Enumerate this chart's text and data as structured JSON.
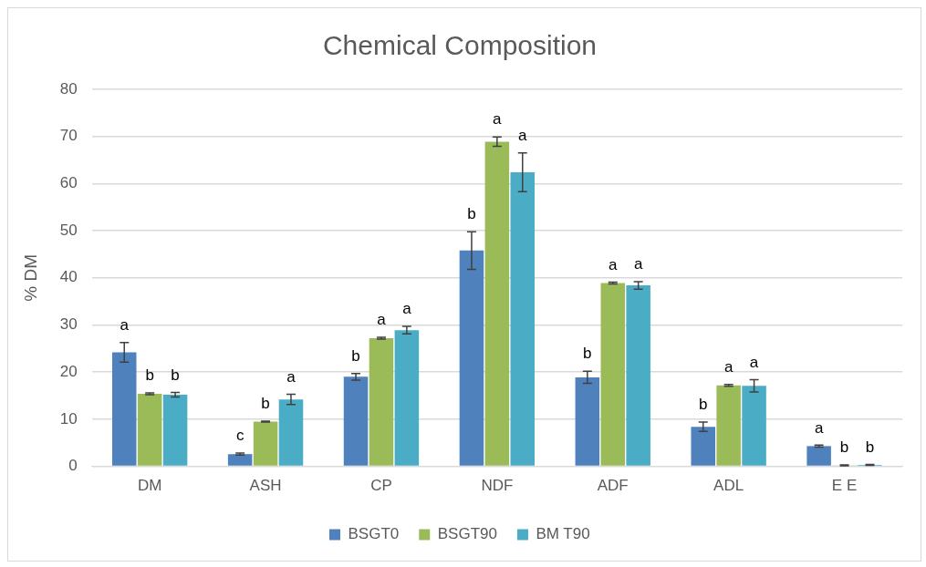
{
  "chart_data": {
    "type": "bar",
    "title": "Chemical Composition",
    "ylabel": "% DM",
    "categories": [
      "DM",
      "ASH",
      "CP",
      "NDF",
      "ADF",
      "ADL",
      "E E"
    ],
    "series": [
      {
        "name": "BSGT0",
        "color": "#4f81bd",
        "values": [
          24.2,
          2.6,
          19,
          45.8,
          18.9,
          8.4,
          4.3
        ],
        "errors": [
          2.1,
          0.2,
          0.7,
          4,
          1.3,
          1,
          0.2
        ],
        "value_labels": [
          "a",
          "c",
          "b",
          "b",
          "b",
          "b",
          "a"
        ]
      },
      {
        "name": "BSGT90",
        "color": "#9bbb59",
        "values": [
          15.4,
          9.5,
          27.2,
          68.9,
          38.9,
          17.2,
          0.2
        ],
        "errors": [
          0.2,
          0.1,
          0.2,
          1,
          0.2,
          0.2,
          0.1
        ],
        "value_labels": [
          "b",
          "b",
          "a",
          "a",
          "a",
          "a",
          "b"
        ]
      },
      {
        "name": "BM T90",
        "color": "#4bacc6",
        "values": [
          15.2,
          14.2,
          28.9,
          62.4,
          38.4,
          17.1,
          0.3
        ],
        "errors": [
          0.5,
          1.1,
          0.8,
          4.1,
          0.8,
          1.3,
          0.1
        ],
        "value_labels": [
          "b",
          "a",
          "a",
          "a",
          "a",
          "a",
          "b"
        ]
      }
    ],
    "ylim": [
      0,
      80
    ],
    "yticks": [
      0,
      10,
      20,
      30,
      40,
      50,
      60,
      70,
      80
    ],
    "grid": "y",
    "legend": "bottom"
  }
}
